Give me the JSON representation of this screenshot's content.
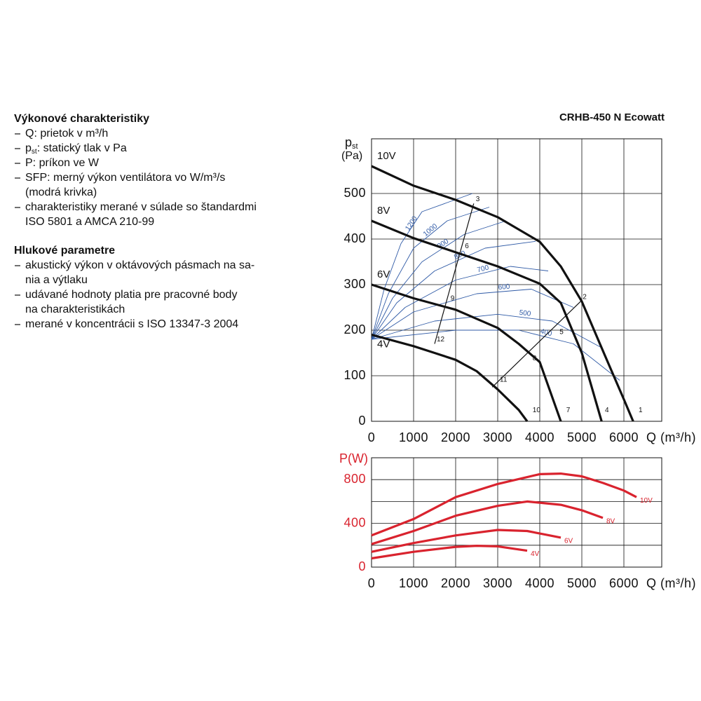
{
  "header": {
    "title": "CRHB-450 N Ecowatt"
  },
  "text": {
    "sections": [
      {
        "heading": "Výkonové charakteristiky",
        "items": [
          {
            "lines": [
              "Q: prietok v m³/h"
            ]
          },
          {
            "lead": "p",
            "sub": "st",
            "lines": [
              ": statický tlak v Pa"
            ]
          },
          {
            "lines": [
              "P: príkon ve W"
            ]
          },
          {
            "lines": [
              "SFP: merný výkon ventilátora vo W/m³/s",
              "(modrá krivka)"
            ]
          },
          {
            "lines": [
              "charakteristiky merané v súlade so štandardmi",
              "ISO 5801 a AMCA 210-99"
            ]
          }
        ]
      },
      {
        "heading": "Hlukové parametre",
        "items": [
          {
            "lines": [
              "akustický výkon v oktávových pásmach na sa-",
              "nia a výtlaku"
            ]
          },
          {
            "lines": [
              "udávané hodnoty platia pre pracovné body",
              "na charakteristikách"
            ]
          },
          {
            "lines": [
              "merané v koncentrácii s ISO 13347-3 2004"
            ]
          }
        ]
      }
    ]
  },
  "chart_data": [
    {
      "type": "line",
      "x_label": "Q (m³/h)",
      "y_label": "p",
      "y_label_sub": "st",
      "y_unit": "(Pa)",
      "xlim": [
        0,
        6900
      ],
      "ylim": [
        0,
        620
      ],
      "xticks": [
        0,
        1000,
        2000,
        3000,
        4000,
        5000,
        6000
      ],
      "yticks": [
        0,
        100,
        200,
        300,
        400,
        500
      ],
      "grid": true,
      "series_label": "start",
      "series": [
        {
          "name": "10V",
          "color": "#111111",
          "x": [
            0,
            1000,
            2000,
            3000,
            4000,
            4500,
            5000,
            5500,
            6000,
            6220
          ],
          "values": [
            560,
            517,
            486,
            448,
            394,
            340,
            263,
            155,
            48,
            0
          ]
        },
        {
          "name": "8V",
          "color": "#111111",
          "x": [
            0,
            1000,
            2000,
            3000,
            4000,
            4500,
            5000,
            5470
          ],
          "values": [
            440,
            402,
            371,
            340,
            302,
            260,
            150,
            0
          ]
        },
        {
          "name": "6V",
          "color": "#111111",
          "x": [
            0,
            1000,
            2000,
            3000,
            3500,
            4000,
            4500
          ],
          "values": [
            300,
            270,
            245,
            205,
            170,
            130,
            0
          ]
        },
        {
          "name": "4V",
          "color": "#111111",
          "x": [
            0,
            1000,
            1500,
            2000,
            2500,
            3000,
            3500,
            3700
          ],
          "values": [
            190,
            165,
            150,
            135,
            110,
            70,
            25,
            0
          ]
        }
      ],
      "sfp_curves": [
        {
          "name": "1200",
          "color": "#2f5aa6",
          "x": [
            0,
            300,
            700,
            1200,
            2400
          ],
          "values": [
            180,
            290,
            390,
            460,
            500
          ]
        },
        {
          "name": "1000",
          "color": "#2f5aa6",
          "x": [
            0,
            400,
            1000,
            1800,
            2800
          ],
          "values": [
            180,
            280,
            380,
            440,
            470
          ]
        },
        {
          "name": "900",
          "color": "#2f5aa6",
          "x": [
            0,
            500,
            1200,
            2200,
            3200
          ],
          "values": [
            180,
            270,
            350,
            410,
            440
          ]
        },
        {
          "name": "800",
          "color": "#2f5aa6",
          "x": [
            0,
            600,
            1500,
            2700,
            3900
          ],
          "values": [
            180,
            260,
            330,
            380,
            395
          ]
        },
        {
          "name": "700",
          "color": "#2f5aa6",
          "x": [
            0,
            800,
            2000,
            3300,
            4200
          ],
          "values": [
            180,
            250,
            310,
            340,
            330
          ]
        },
        {
          "name": "600",
          "color": "#2f5aa6",
          "x": [
            0,
            1000,
            2500,
            3800,
            4800
          ],
          "values": [
            180,
            240,
            280,
            290,
            250
          ]
        },
        {
          "name": "500",
          "color": "#2f5aa6",
          "x": [
            0,
            1500,
            3000,
            4300,
            5500
          ],
          "values": [
            180,
            220,
            235,
            220,
            160
          ]
        },
        {
          "name": "400",
          "color": "#2f5aa6",
          "x": [
            0,
            2000,
            3500,
            4800,
            5900
          ],
          "values": [
            180,
            200,
            200,
            170,
            90
          ]
        }
      ],
      "operating_lines": [
        {
          "color": "#111111",
          "x": [
            1500,
            2430
          ],
          "values": [
            170,
            478
          ]
        },
        {
          "color": "#111111",
          "x": [
            2870,
            4970
          ],
          "values": [
            75,
            263
          ]
        }
      ],
      "points": [
        {
          "label": "1",
          "x": 6300,
          "y": 15
        },
        {
          "label": "2",
          "x": 4970,
          "y": 263
        },
        {
          "label": "3",
          "x": 2430,
          "y": 478
        },
        {
          "label": "4",
          "x": 5500,
          "y": 15
        },
        {
          "label": "5",
          "x": 4420,
          "y": 186
        },
        {
          "label": "6",
          "x": 2170,
          "y": 375
        },
        {
          "label": "7",
          "x": 4580,
          "y": 15
        },
        {
          "label": "8",
          "x": 3780,
          "y": 129
        },
        {
          "label": "9",
          "x": 1830,
          "y": 260
        },
        {
          "label": "10",
          "x": 3780,
          "y": 15
        },
        {
          "label": "11",
          "x": 3000,
          "y": 82
        },
        {
          "label": "12",
          "x": 1500,
          "y": 170
        }
      ]
    },
    {
      "type": "line",
      "x_label": "Q (m³/h)",
      "y_label": "P(W)",
      "y_axis_color": "#d9232e",
      "xlim": [
        0,
        6900
      ],
      "ylim": [
        0,
        1000
      ],
      "xticks": [
        0,
        1000,
        2000,
        3000,
        4000,
        5000,
        6000
      ],
      "yticks": [
        0,
        400,
        800
      ],
      "ygrid": [
        200,
        600
      ],
      "grid": true,
      "series_label": "end",
      "series": [
        {
          "name": "10V",
          "color": "#d9232e",
          "x": [
            0,
            1000,
            2000,
            3000,
            4000,
            4500,
            5000,
            5500,
            6000,
            6300
          ],
          "values": [
            290,
            440,
            640,
            760,
            850,
            855,
            830,
            770,
            700,
            640
          ]
        },
        {
          "name": "8V",
          "color": "#d9232e",
          "x": [
            0,
            1000,
            2000,
            3000,
            3700,
            4500,
            5000,
            5500
          ],
          "values": [
            210,
            330,
            470,
            560,
            600,
            570,
            520,
            450
          ]
        },
        {
          "name": "6V",
          "color": "#d9232e",
          "x": [
            0,
            1000,
            2000,
            3000,
            3700,
            4500
          ],
          "values": [
            140,
            220,
            290,
            340,
            330,
            270
          ]
        },
        {
          "name": "4V",
          "color": "#d9232e",
          "x": [
            0,
            1000,
            2000,
            2500,
            3000,
            3700
          ],
          "values": [
            80,
            140,
            185,
            195,
            190,
            150
          ]
        }
      ]
    }
  ]
}
